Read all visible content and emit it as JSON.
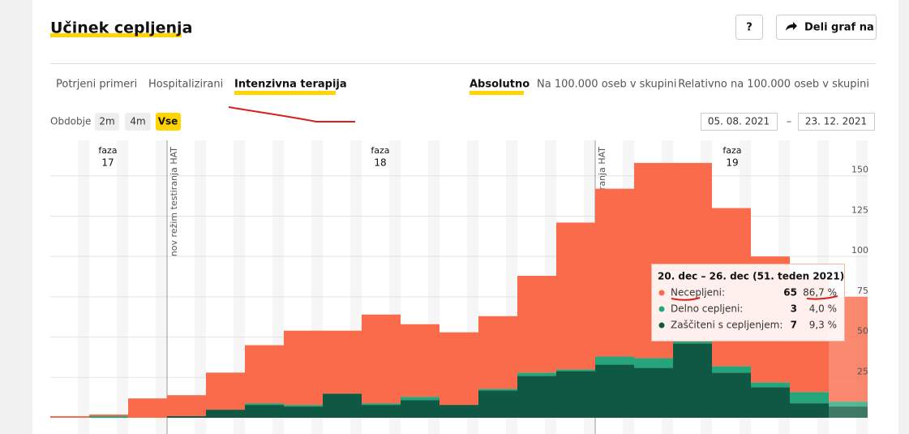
{
  "header": {
    "title": "Učinek cepljenja",
    "help": "?",
    "share": "Deli graf na"
  },
  "tabs": [
    "Potrjeni primeri",
    "Hospitalizirani",
    "Intenzivna terapija"
  ],
  "modes": [
    "Absolutno",
    "Na 100.000 oseb v skupini",
    "Relativno na 100.000 oseb v skupini"
  ],
  "period": {
    "label": "Obdobje",
    "options": [
      "2m",
      "4m",
      "Vse"
    ],
    "date_from": "05. 08. 2021",
    "date_sep": "–",
    "date_to": "23. 12. 2021"
  },
  "chart_data": {
    "type": "stacked-bar",
    "categories": [
      null,
      null,
      null,
      null,
      null,
      null,
      null,
      null,
      null,
      null,
      null,
      null,
      null,
      null,
      null,
      null,
      null,
      null,
      null,
      null,
      null
    ],
    "series": [
      {
        "name": "Necepljeni:",
        "color": "#fa6b4b",
        "values": [
          1,
          1,
          12,
          13,
          23,
          36,
          46,
          39,
          55,
          45,
          45,
          45,
          60,
          91,
          104,
          121,
          110,
          98,
          78,
          70,
          65
        ]
      },
      {
        "name": "Delno cepljeni:",
        "color": "#26a57a",
        "values": [
          0,
          1,
          0,
          0,
          0,
          1,
          1,
          0,
          1,
          2,
          0,
          1,
          2,
          1,
          5,
          6,
          2,
          4,
          3,
          7,
          3
        ]
      },
      {
        "name": "Zaščiteni s cepljenjem:",
        "color": "#0f5944",
        "values": [
          0,
          0,
          0,
          1,
          5,
          8,
          7,
          15,
          8,
          11,
          8,
          17,
          26,
          29,
          33,
          31,
          46,
          28,
          19,
          9,
          7
        ]
      }
    ],
    "ylim": [
      0,
      172
    ],
    "yticks": [
      25,
      50,
      75,
      100,
      125,
      150
    ],
    "grid": true,
    "phases": [
      {
        "label": "faza",
        "number": 17
      },
      {
        "label": "faza",
        "number": 18
      },
      {
        "label": "faza",
        "number": 19
      }
    ],
    "markers": [
      "nov režim testiranja HAT",
      "nov režim testiranja HAT"
    ],
    "tooltip": {
      "title": "20. dec – 26. dec (51. teden 2021)",
      "shares": [
        86.7,
        4.0,
        9.3
      ],
      "share_labels": [
        "86,7 %",
        "4,0 %",
        "9,3 %"
      ]
    }
  }
}
